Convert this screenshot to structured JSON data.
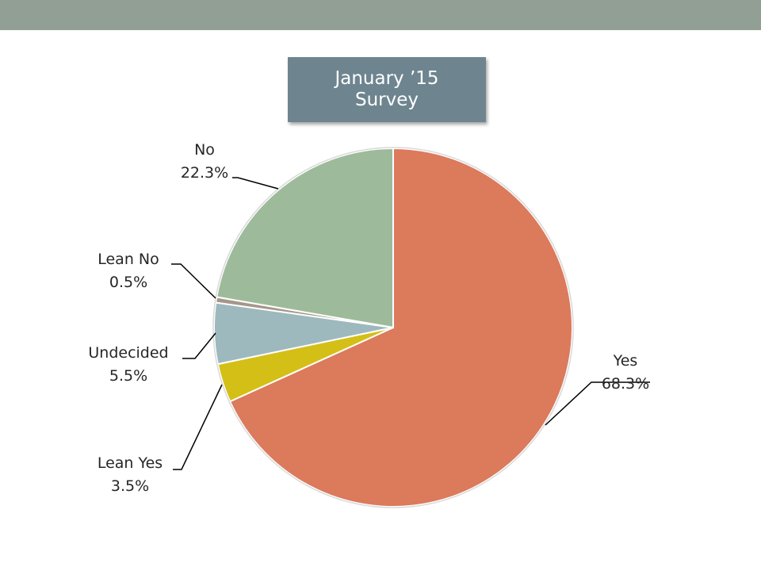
{
  "colors": {
    "header_bar": "#919f94",
    "title_box": "#6e8590"
  },
  "chart_data": {
    "type": "pie",
    "title_lines": [
      "January ’15",
      "Survey"
    ],
    "grid": false,
    "legend": "none",
    "slices": [
      {
        "label": "Yes",
        "value": 68.3,
        "value_text": "68.3%",
        "color": "#dc7a5c"
      },
      {
        "label": "Lean Yes",
        "value": 3.5,
        "value_text": "3.5%",
        "color": "#d4bf16"
      },
      {
        "label": "Undecided",
        "value": 5.5,
        "value_text": "5.5%",
        "color": "#9db9bd"
      },
      {
        "label": "Lean No",
        "value": 0.5,
        "value_text": "0.5%",
        "color": "#a6968a"
      },
      {
        "label": "No",
        "value": 22.3,
        "value_text": "22.3%",
        "color": "#9dbb9a"
      }
    ]
  }
}
